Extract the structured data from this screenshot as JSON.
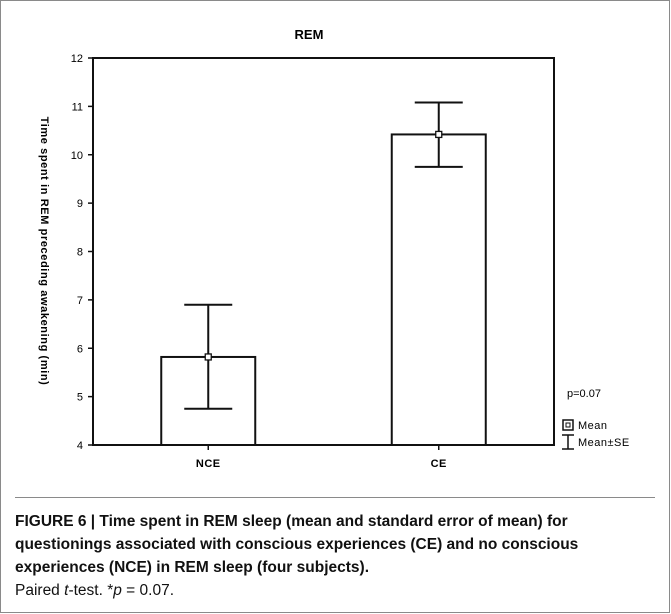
{
  "chart_data": {
    "type": "bar",
    "title": "REM",
    "ylabel": "Time spent in REM preceding awakening (min)",
    "xlabel": "",
    "categories": [
      "NCE",
      "CE"
    ],
    "values": [
      5.82,
      10.42
    ],
    "error_low": [
      4.75,
      9.75
    ],
    "error_high": [
      6.9,
      11.08
    ],
    "ylim": [
      4,
      12
    ],
    "yticks": [
      "4",
      "5",
      "6",
      "7",
      "8",
      "9",
      "10",
      "11",
      "12"
    ],
    "annotation": "p=0.07",
    "legend": {
      "mean_label": "Mean",
      "se_label": "Mean±SE",
      "position": "bottom-right"
    },
    "grid": false
  },
  "caption": {
    "bold": "FIGURE 6 | Time spent in REM sleep (mean and standard error of mean) for questionings associated with conscious experiences (CE) and no conscious experiences (NCE) in REM sleep (four subjects).",
    "normal_prefix": "Paired ",
    "italic_t": "t",
    "normal_mid": "-test. *",
    "italic_p": "p",
    "normal_suffix": " = 0.07."
  }
}
